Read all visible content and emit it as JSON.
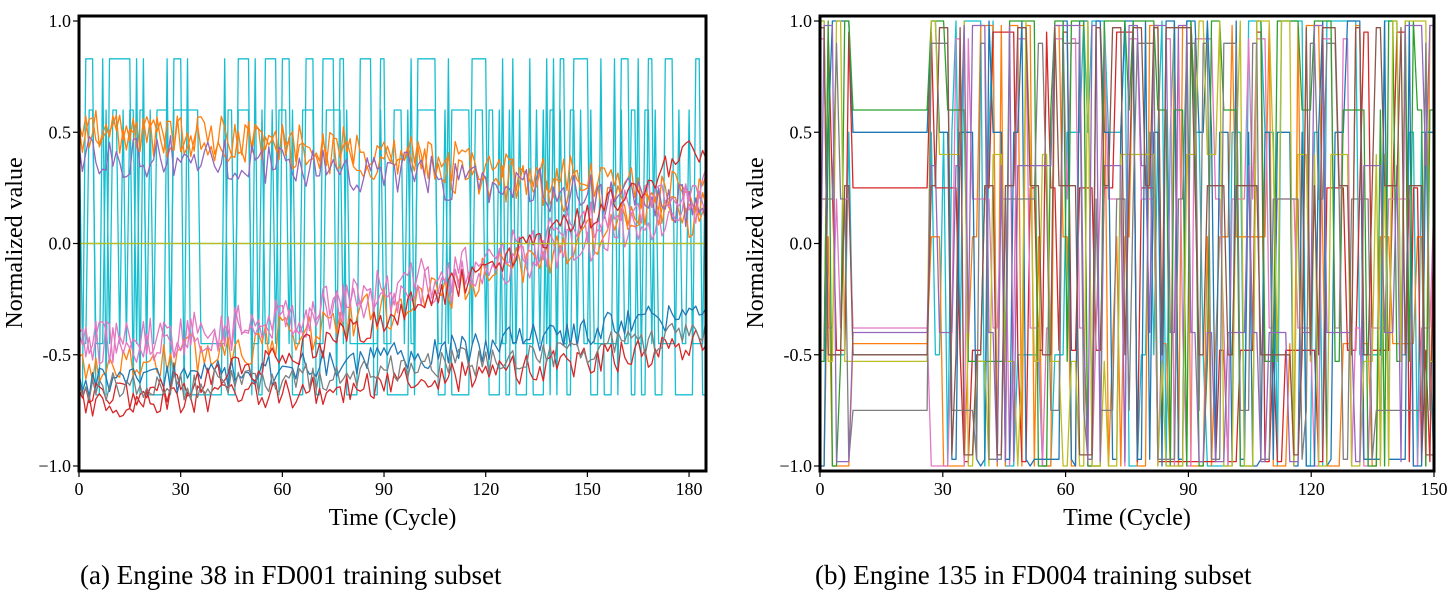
{
  "chart_data": [
    {
      "type": "line",
      "caption": "(a)  Engine 38 in FD001 training subset",
      "xlabel": "Time (Cycle)",
      "ylabel": "Normalized value",
      "xlim": [
        0,
        185
      ],
      "ylim": [
        -1.0,
        1.0
      ],
      "xticks": [
        0,
        30,
        60,
        90,
        120,
        150,
        180
      ],
      "xtick_labels": [
        "0",
        "30",
        "60",
        "90",
        "120",
        "150",
        "180"
      ],
      "yticks": [
        -1.0,
        -0.5,
        0.0,
        0.5,
        1.0
      ],
      "ytick_labels": [
        "−1.0",
        "-0.5",
        "0.0",
        "0.5",
        "1.0"
      ],
      "grid": false,
      "n_cycles": 186,
      "series": [
        {
          "color": "#17becf",
          "style": "binary",
          "levels": [
            -0.68,
            0.83
          ]
        },
        {
          "color": "#17becf",
          "style": "binary",
          "levels": [
            -0.45,
            0.6
          ]
        },
        {
          "color": "#ff7f0e",
          "style": "noisy",
          "start": 0.5,
          "end": 0.1,
          "noise": 0.1
        },
        {
          "color": "#ff7f0e",
          "style": "noisy",
          "start": 0.5,
          "end": 0.2,
          "noise": 0.1
        },
        {
          "color": "#ff7f0e",
          "style": "noisy",
          "start": -0.55,
          "end": 0.25,
          "noise": 0.1
        },
        {
          "color": "#9467bd",
          "style": "noisy",
          "start": 0.4,
          "end": 0.15,
          "noise": 0.1
        },
        {
          "color": "#e377c2",
          "style": "noisy",
          "start": -0.45,
          "end": 0.3,
          "noise": 0.1
        },
        {
          "color": "#e377c2",
          "style": "noisy",
          "start": -0.45,
          "end": 0.2,
          "noise": 0.1
        },
        {
          "color": "#1f77b4",
          "style": "noisy",
          "start": -0.62,
          "end": -0.3,
          "noise": 0.07
        },
        {
          "color": "#d62728",
          "style": "noisy",
          "start": -0.7,
          "end": 0.45,
          "noise": 0.07
        },
        {
          "color": "#d62728",
          "style": "noisy",
          "start": -0.72,
          "end": -0.45,
          "noise": 0.07
        },
        {
          "color": "#7f7f7f",
          "style": "noisy",
          "start": -0.65,
          "end": -0.4,
          "noise": 0.07
        },
        {
          "color": "#2ca02c",
          "style": "flat",
          "value": 0.0
        },
        {
          "color": "#bcbd22",
          "style": "flat",
          "value": 0.0
        }
      ]
    },
    {
      "type": "line",
      "caption": "(b)  Engine 135 in FD004 training subset",
      "xlabel": "Time (Cycle)",
      "ylabel": "Normalized value",
      "xlim": [
        0,
        150
      ],
      "ylim": [
        -1.0,
        1.0
      ],
      "xticks": [
        0,
        30,
        60,
        90,
        120,
        150
      ],
      "xtick_labels": [
        "0",
        "30",
        "60",
        "90",
        "120",
        "150"
      ],
      "yticks": [
        -1.0,
        -0.5,
        0.0,
        0.5,
        1.0
      ],
      "ytick_labels": [
        "−1.0",
        "-0.5",
        "0.0",
        "0.5",
        "1.0"
      ],
      "grid": false,
      "n_cycles": 150,
      "series": [
        {
          "color": "#17becf",
          "style": "modes",
          "values": [
            1.0,
            -1.0,
            0.5,
            -0.5
          ]
        },
        {
          "color": "#ff7f0e",
          "style": "modes",
          "values": [
            0.98,
            -1.0,
            0.03,
            -0.45
          ]
        },
        {
          "color": "#d62728",
          "style": "modes",
          "values": [
            0.95,
            -0.98,
            0.25,
            -0.48
          ]
        },
        {
          "color": "#e377c2",
          "style": "modes",
          "values": [
            0.92,
            -1.0,
            0.2,
            -0.38
          ]
        },
        {
          "color": "#1f77b4",
          "style": "modes",
          "values": [
            1.0,
            -1.0,
            0.5,
            -0.97
          ]
        },
        {
          "color": "#2ca02c",
          "style": "modes",
          "values": [
            1.0,
            -1.0,
            0.6,
            -0.53
          ]
        },
        {
          "color": "#bcbd22",
          "style": "modes",
          "values": [
            1.0,
            -1.0,
            0.4,
            -0.53
          ]
        },
        {
          "color": "#7f7f7f",
          "style": "modes",
          "values": [
            0.9,
            -0.97,
            0.2,
            -0.75
          ]
        },
        {
          "color": "#9467bd",
          "style": "modes",
          "values": [
            0.98,
            -0.98,
            0.35,
            -0.4
          ]
        },
        {
          "color": "#8c564b",
          "style": "modes",
          "values": [
            0.97,
            -0.95,
            0.26,
            -0.5
          ]
        }
      ]
    }
  ]
}
